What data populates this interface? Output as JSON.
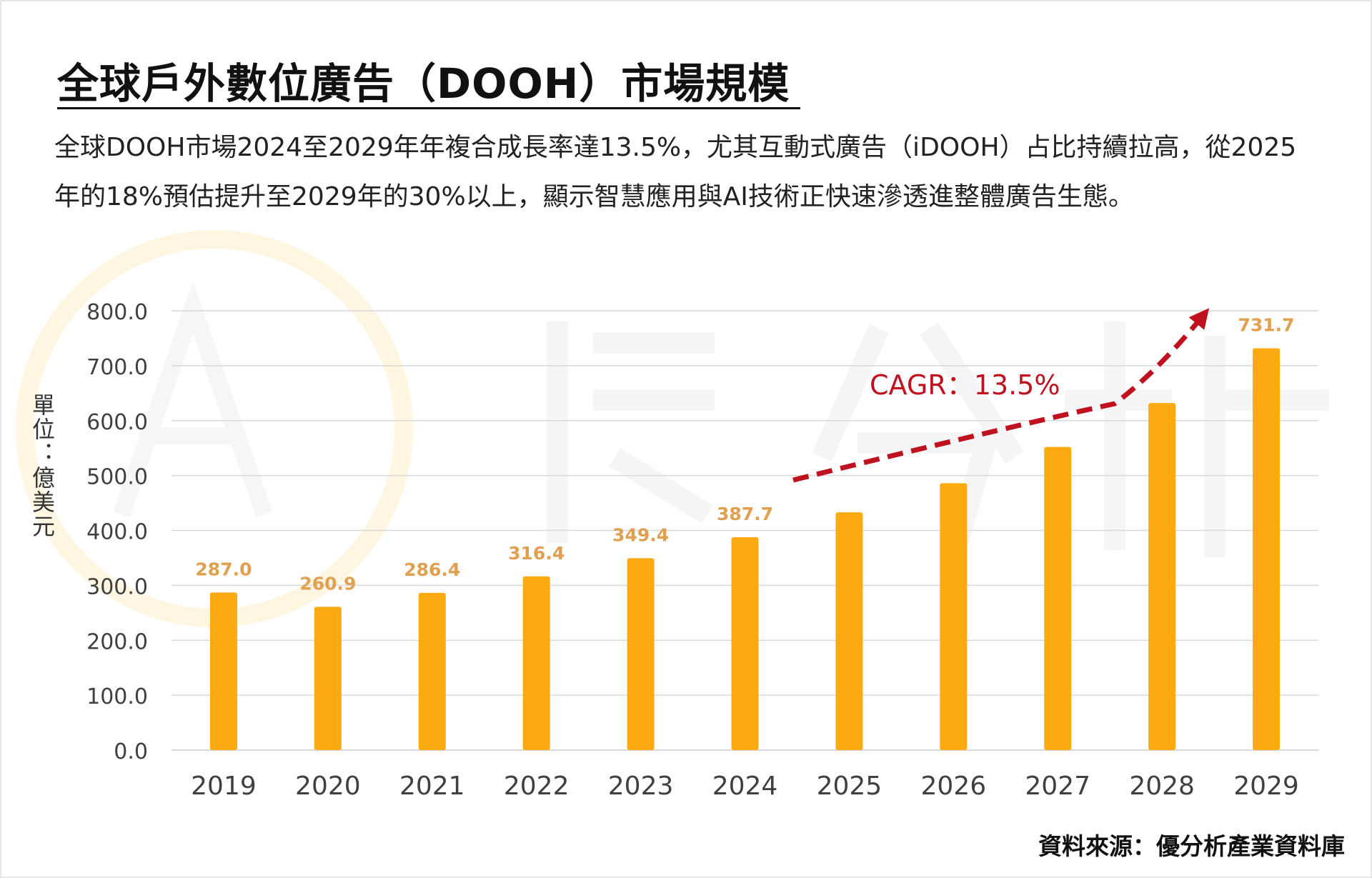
{
  "title": "全球戶外數位廣告（DOOH）市場規模",
  "subtitle": "全球DOOH市場2024至2029年年複合成長率達13.5%，尤其互動式廣告（iDOOH）占比持續拉高，從2025年的18%預估提升至2029年的30%以上，顯示智慧應用與AI技術正快速滲透進整體廣告生態。",
  "source": "資料來源：優分析產業資料庫",
  "colors": {
    "bar": "#FBAA12",
    "data_label": "#E0A050",
    "arrow": "#C0111F",
    "grid": "#D9D9D9",
    "axis_text": "#404040"
  },
  "chart_data": {
    "type": "bar",
    "ylabel": "單位：億美元",
    "categories": [
      "2019",
      "2020",
      "2021",
      "2022",
      "2023",
      "2024",
      "2025",
      "2026",
      "2027",
      "2028",
      "2029"
    ],
    "values": [
      287.0,
      260.9,
      286.4,
      316.4,
      349.4,
      387.7,
      433.0,
      486.0,
      552.0,
      632.0,
      731.7
    ],
    "data_labels": [
      "287.0",
      "260.9",
      "286.4",
      "316.4",
      "349.4",
      "387.7",
      "",
      "",
      "",
      "",
      "731.7"
    ],
    "ylim": [
      0,
      800
    ],
    "yticks": [
      "0.0",
      "100.0",
      "200.0",
      "300.0",
      "400.0",
      "500.0",
      "600.0",
      "700.0",
      "800.0"
    ],
    "grid": true,
    "annotation": "CAGR：13.5%"
  }
}
